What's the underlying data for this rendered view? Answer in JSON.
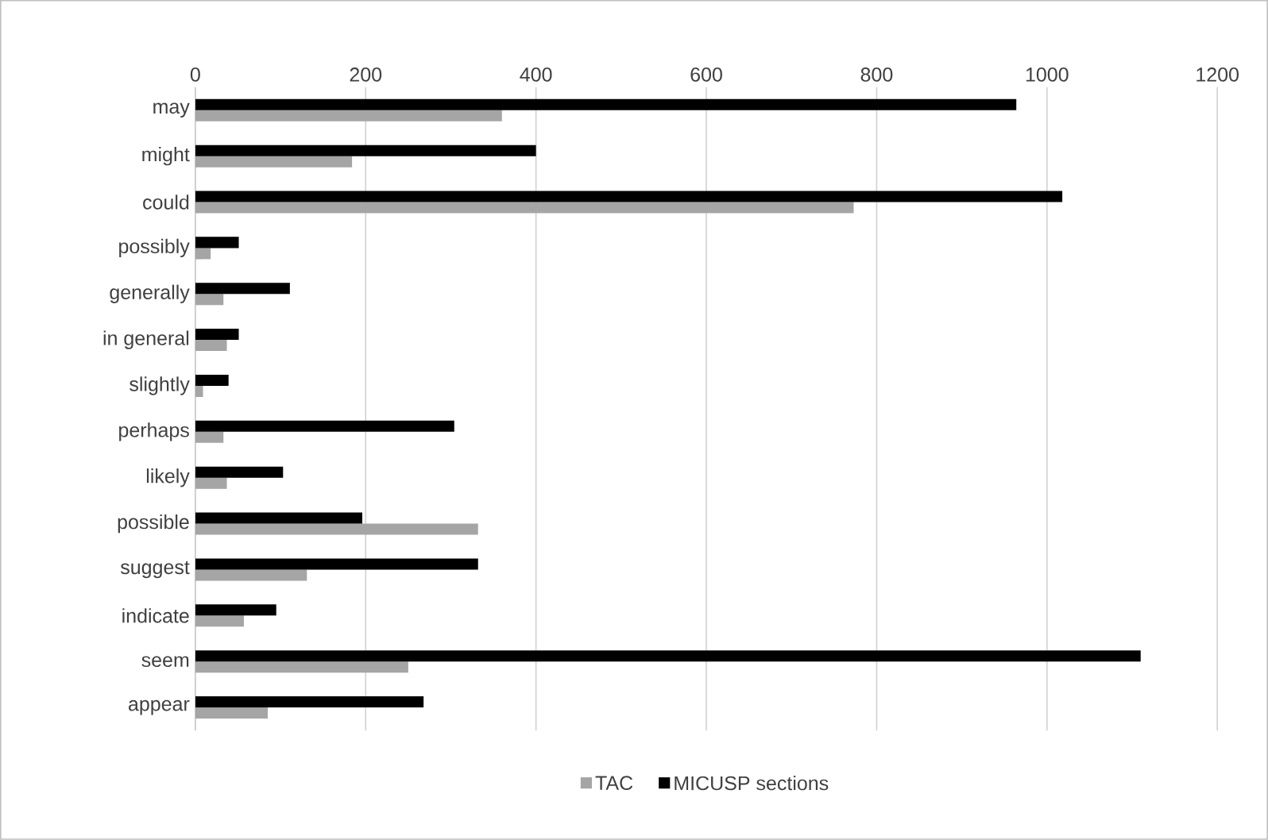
{
  "chart_data": {
    "type": "bar",
    "orientation": "horizontal",
    "categories": [
      "may",
      "might",
      "could",
      "possibly",
      "generally",
      "in general",
      "slightly",
      "perhaps",
      "likely",
      "possible",
      "suggest",
      "indicate",
      "seem",
      "appear"
    ],
    "series": [
      {
        "name": "TAC",
        "color": "#a5a5a5",
        "values": [
          360,
          184,
          773,
          18,
          33,
          37,
          9,
          33,
          37,
          332,
          131,
          57,
          250,
          85
        ]
      },
      {
        "name": "MICUSP sections",
        "color": "#000000",
        "values": [
          964,
          400,
          1018,
          51,
          111,
          51,
          39,
          304,
          103,
          196,
          332,
          95,
          1110,
          268
        ]
      }
    ],
    "xlim": [
      0,
      1200
    ],
    "xticks": [
      0,
      200,
      400,
      600,
      800,
      1000,
      1200
    ],
    "grid": "x",
    "legend": "bottom"
  }
}
